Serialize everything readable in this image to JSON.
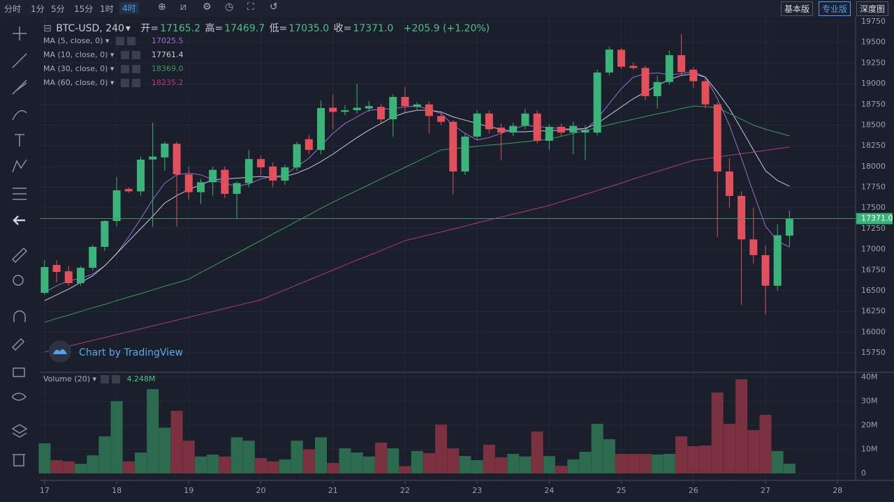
{
  "toolbar": {
    "intervals": [
      "分时",
      "1分",
      "5分",
      "15分",
      "1时",
      "4时"
    ],
    "active_index": 5,
    "versions": [
      "基本版",
      "专业版",
      "深度图"
    ],
    "active_version_index": 1
  },
  "chart_data": {
    "type": "candlestick",
    "title": "BTC-USD, 240",
    "ohlc_labels": [
      "开=",
      "高=",
      "低=",
      "收="
    ],
    "ohlc_values": [
      "17165.2",
      "17469.7",
      "17035.0",
      "17371.0"
    ],
    "change": "+205.9 (+1.20%)",
    "x": [
      0,
      4,
      8,
      12,
      16,
      20,
      24,
      28,
      32,
      36,
      40,
      44,
      48,
      52,
      56,
      60,
      64,
      68,
      72,
      76,
      80,
      84,
      88,
      92,
      96,
      100,
      104,
      108,
      112,
      116,
      120,
      124,
      128,
      132,
      136,
      140,
      144,
      148,
      152,
      156,
      160,
      164,
      168,
      172,
      176,
      180,
      184,
      188,
      192,
      196,
      200,
      204,
      208,
      212,
      216,
      220,
      224,
      228,
      232,
      236,
      240,
      244,
      248
    ],
    "open": [
      16474,
      16811,
      16735,
      16592,
      16777,
      17030,
      17342,
      17730,
      17700,
      18085,
      18110,
      18276,
      17906,
      17690,
      17810,
      17960,
      17670,
      17800,
      18090,
      18000,
      17830,
      17990,
      18330,
      18200,
      18710,
      18660,
      18680,
      18700,
      18720,
      18570,
      18840,
      18720,
      18750,
      18610,
      18540,
      17940,
      18361,
      18640,
      18470,
      18410,
      18490,
      18640,
      18310,
      18480,
      18410,
      18410,
      18410,
      19135,
      19410,
      19215,
      19190,
      18850,
      19020,
      19345,
      19170,
      19030,
      18750,
      17940,
      17645,
      17120,
      16930,
      16560,
      17165.2
    ],
    "high": [
      16870,
      16870,
      16800,
      16800,
      17050,
      17350,
      17870,
      17750,
      18120,
      18530,
      18300,
      18300,
      18000,
      17850,
      18000,
      18000,
      17820,
      18200,
      18130,
      18050,
      18020,
      18300,
      18380,
      18800,
      18870,
      18740,
      19000,
      18790,
      18760,
      18870,
      18960,
      18780,
      18790,
      18650,
      18560,
      18400,
      18680,
      18680,
      18520,
      18530,
      18700,
      18680,
      18510,
      18520,
      18540,
      18500,
      19170,
      19450,
      19430,
      19260,
      19220,
      19100,
      19400,
      19600,
      19200,
      19080,
      18780,
      18100,
      17700,
      17500,
      17050,
      17300,
      17469.7
    ],
    "low": [
      16449,
      16600,
      16560,
      16560,
      16740,
      16980,
      17280,
      17680,
      17650,
      17270,
      17950,
      17270,
      17600,
      17550,
      17650,
      17620,
      17375,
      17750,
      17900,
      17750,
      17780,
      17950,
      18150,
      18150,
      18450,
      18620,
      18640,
      18660,
      18520,
      18360,
      18650,
      18690,
      18400,
      18500,
      17660,
      17900,
      18320,
      18400,
      18080,
      18370,
      18450,
      18280,
      18200,
      18370,
      18150,
      18080,
      18380,
      19100,
      19180,
      19170,
      18800,
      18700,
      18990,
      19100,
      18950,
      18700,
      17150,
      17500,
      16330,
      16830,
      16210,
      16500,
      17035.0
    ],
    "close": [
      16786,
      16727,
      16592,
      16777,
      17030,
      17342,
      17712,
      17700,
      18083,
      18120,
      18276,
      17906,
      17690,
      17810,
      17960,
      17670,
      17800,
      18090,
      17990,
      17830,
      17990,
      18270,
      18200,
      18706,
      18660,
      18680,
      18710,
      18730,
      18570,
      18840,
      18730,
      18750,
      18610,
      18540,
      17940,
      18361,
      18640,
      18450,
      18410,
      18490,
      18640,
      18310,
      18480,
      18410,
      18490,
      18440,
      19135,
      19413,
      19205,
      19190,
      18850,
      19020,
      19345,
      19140,
      19030,
      18750,
      17940,
      17645,
      17120,
      16930,
      16560,
      17170,
      17371.0
    ],
    "volume": [
      12.5,
      5.5,
      5,
      4,
      7.5,
      15.4,
      30,
      5,
      8.7,
      35,
      19,
      26,
      13.6,
      7,
      7.8,
      7,
      15,
      13.6,
      6.4,
      5,
      5.8,
      13.6,
      10,
      15,
      4.3,
      10.4,
      8.7,
      7,
      12.8,
      10.4,
      3,
      9.3,
      8.4,
      20.3,
      10.4,
      7.2,
      5.5,
      11.9,
      6.7,
      8.1,
      7,
      17.4,
      7.2,
      3.2,
      5.8,
      9,
      20.6,
      14.2,
      8.1,
      8.1,
      8.1,
      7.8,
      8.1,
      15.4,
      11.3,
      11.6,
      33.6,
      20.6,
      39.1,
      18,
      24.3,
      9.3,
      4
    ],
    "up_color": "#3bb37a",
    "down_color": "#e2505c",
    "volume_up_color": "#2c6b50",
    "volume_down_color": "#7c3140",
    "series": [
      {
        "name": "MA (5, close, 0)",
        "color": "#9c6bd6",
        "values": [
          16480,
          16560,
          16620,
          16650,
          16700,
          16800,
          16950,
          17150,
          17370,
          17600,
          17800,
          17900,
          17920,
          17900,
          17840,
          17800,
          17760,
          17790,
          17850,
          17880,
          17900,
          18000,
          18100,
          18250,
          18400,
          18520,
          18600,
          18680,
          18690,
          18700,
          18720,
          18730,
          18690,
          18640,
          18500,
          18400,
          18320,
          18350,
          18400,
          18450,
          18500,
          18480,
          18470,
          18460,
          18450,
          18440,
          18580,
          18760,
          18940,
          19080,
          19120,
          19130,
          19110,
          19120,
          19150,
          19080,
          18820,
          18500,
          18100,
          17680,
          17280,
          17100,
          17025.5
        ]
      },
      {
        "name": "MA (10, close, 0)",
        "color": "#c8c8e8",
        "values": [
          16380,
          16450,
          16520,
          16600,
          16680,
          16800,
          16950,
          17100,
          17250,
          17400,
          17560,
          17650,
          17720,
          17780,
          17840,
          17850,
          17860,
          17870,
          17880,
          17870,
          17880,
          17920,
          17980,
          18060,
          18150,
          18250,
          18350,
          18440,
          18520,
          18600,
          18650,
          18680,
          18680,
          18660,
          18600,
          18560,
          18520,
          18480,
          18450,
          18420,
          18420,
          18430,
          18430,
          18440,
          18450,
          18460,
          18520,
          18620,
          18720,
          18820,
          18900,
          18980,
          19050,
          19100,
          19120,
          19080,
          18900,
          18700,
          18450,
          18200,
          17950,
          17830,
          17761.4
        ]
      },
      {
        "name": "MA (30, close, 0)",
        "color": "#3f9a5a",
        "values": [
          16120,
          16165,
          16205,
          16250,
          16295,
          16335,
          16380,
          16425,
          16465,
          16510,
          16555,
          16595,
          16640,
          16720,
          16795,
          16875,
          16950,
          17030,
          17105,
          17185,
          17260,
          17340,
          17415,
          17495,
          17570,
          17640,
          17710,
          17780,
          17850,
          17920,
          17990,
          18060,
          18130,
          18200,
          18215,
          18230,
          18245,
          18260,
          18270,
          18285,
          18300,
          18315,
          18330,
          18365,
          18400,
          18435,
          18470,
          18505,
          18540,
          18570,
          18605,
          18635,
          18665,
          18700,
          18730,
          18725,
          18710,
          18640,
          18570,
          18500,
          18450,
          18410,
          18369.0
        ]
      },
      {
        "name": "MA (60, close, 0)",
        "color": "#b23a82",
        "values": [
          15760,
          15795,
          15830,
          15865,
          15900,
          15935,
          15970,
          16005,
          16040,
          16075,
          16110,
          16145,
          16180,
          16215,
          16250,
          16285,
          16320,
          16355,
          16390,
          16450,
          16510,
          16570,
          16630,
          16690,
          16750,
          16810,
          16870,
          16925,
          16985,
          17045,
          17105,
          17140,
          17175,
          17210,
          17245,
          17280,
          17320,
          17355,
          17390,
          17425,
          17460,
          17495,
          17530,
          17575,
          17620,
          17665,
          17710,
          17755,
          17800,
          17850,
          17895,
          17940,
          17985,
          18030,
          18075,
          18095,
          18115,
          18135,
          18155,
          18175,
          18195,
          18215,
          18235.2
        ]
      }
    ],
    "legend_values": [
      "17025.5",
      "17761.4",
      "18369.0",
      "18235.2"
    ],
    "price_tag": "17371.0",
    "xlim": [
      -1.6,
      270
    ],
    "xticks": [
      {
        "value": 0,
        "label": "17"
      },
      {
        "value": 24,
        "label": "18"
      },
      {
        "value": 48,
        "label": "19"
      },
      {
        "value": 72,
        "label": "20"
      },
      {
        "value": 96,
        "label": "21"
      },
      {
        "value": 120,
        "label": "22"
      },
      {
        "value": 144,
        "label": "23"
      },
      {
        "value": 168,
        "label": "24"
      },
      {
        "value": 192,
        "label": "25"
      },
      {
        "value": 216,
        "label": "26"
      },
      {
        "value": 240,
        "label": "27"
      },
      {
        "value": 264,
        "label": "28"
      }
    ],
    "ylim": [
      15523,
      19809
    ],
    "yticks": [
      15750,
      16000,
      16250,
      16500,
      16750,
      17000,
      17250,
      17500,
      17750,
      18000,
      18250,
      18500,
      18750,
      19000,
      19250,
      19500,
      19750
    ],
    "volume_title": "Volume (20)",
    "volume_value": "4.248M",
    "volume_lim": [
      -0.3,
      41.7
    ],
    "volume_ticks": [
      {
        "value": 0,
        "label": "0"
      },
      {
        "value": 10,
        "label": "10M"
      },
      {
        "value": 20,
        "label": "20M"
      },
      {
        "value": 30,
        "label": "30M"
      },
      {
        "value": 40,
        "label": "40M"
      }
    ],
    "grid": true,
    "watermark": "Chart by TradingView"
  }
}
